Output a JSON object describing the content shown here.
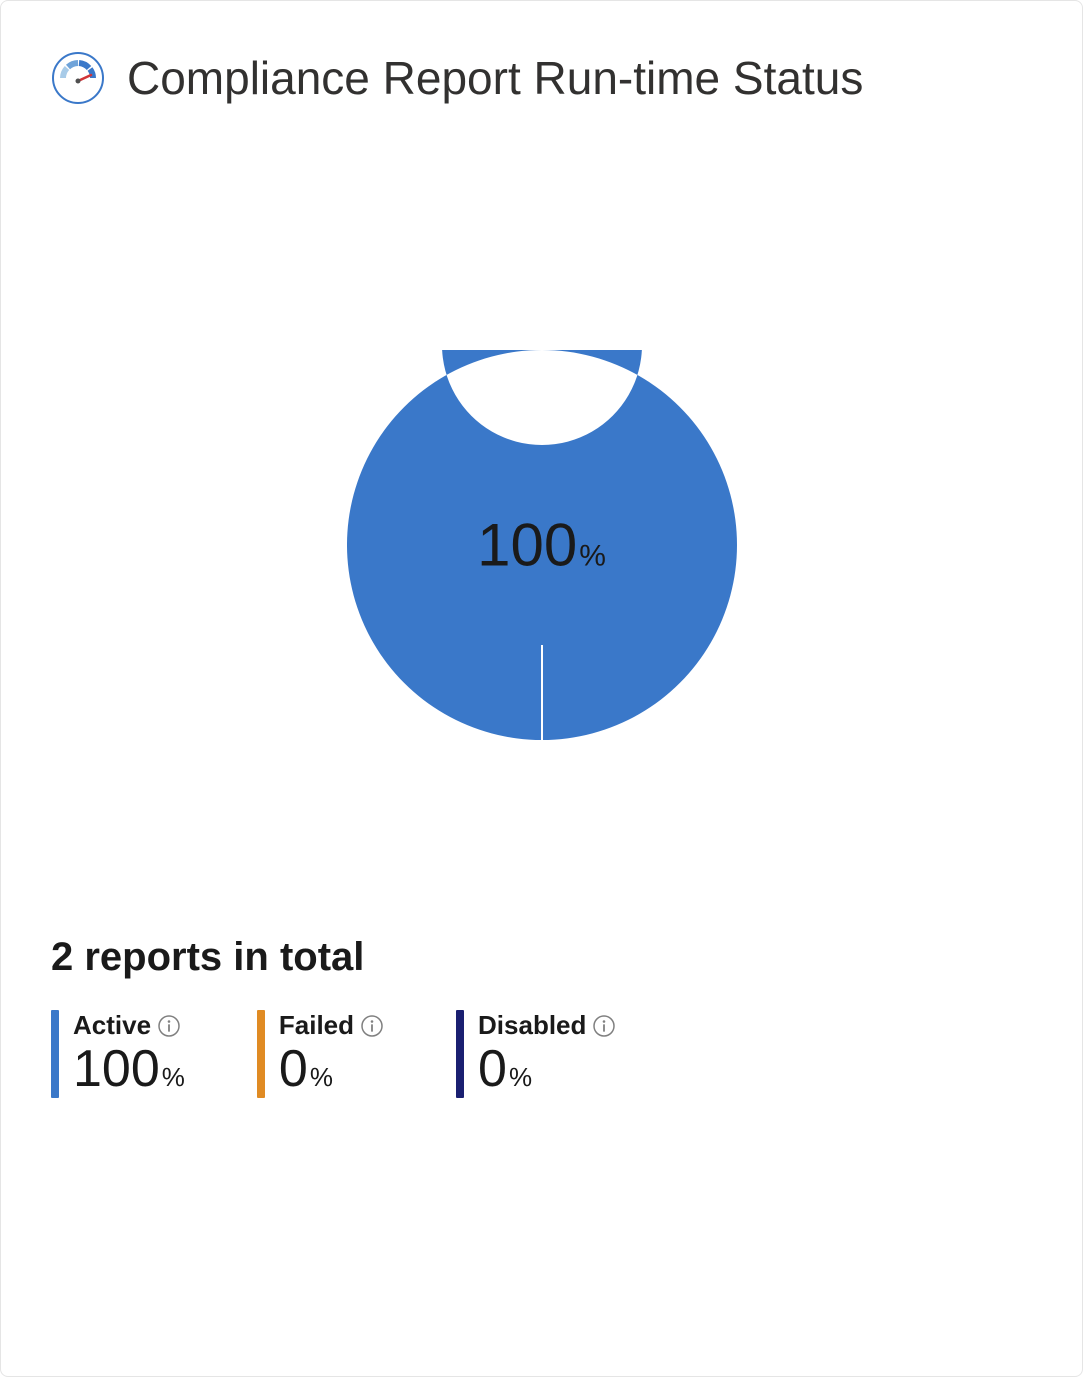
{
  "card": {
    "title": "Compliance Report Run-time Status",
    "border_color": "#e5e5e5",
    "background_color": "#ffffff"
  },
  "donut_chart": {
    "type": "donut",
    "center_value": "100",
    "center_unit": "%",
    "slices": [
      {
        "label": "Active",
        "value": 100,
        "color": "#3a78c9"
      },
      {
        "label": "Failed",
        "value": 0,
        "color": "#e08b23"
      },
      {
        "label": "Disabled",
        "value": 0,
        "color": "#1a1f71"
      }
    ],
    "outer_radius": 195,
    "inner_radius": 100,
    "separator_color": "#ffffff",
    "separator_width": 2,
    "center_text_color": "#1a1a1a",
    "center_value_fontsize": 60,
    "center_unit_fontsize": 30
  },
  "summary": {
    "heading": "2 reports in total",
    "metrics": [
      {
        "label": "Active",
        "value": "100",
        "unit": "%",
        "bar_color": "#3a78c9"
      },
      {
        "label": "Failed",
        "value": "0",
        "unit": "%",
        "bar_color": "#e08b23"
      },
      {
        "label": "Disabled",
        "value": "0",
        "unit": "%",
        "bar_color": "#1a1f71"
      }
    ]
  },
  "icons": {
    "info_stroke": "#808080",
    "gauge_ring_stroke": "#3a78c9",
    "gauge_tick_color_light": "#a8cbe8",
    "gauge_tick_color_mid": "#6fa3d9",
    "gauge_tick_color_dark": "#3a78c9",
    "gauge_needle_color": "#d13438",
    "gauge_center_color": "#505050"
  }
}
